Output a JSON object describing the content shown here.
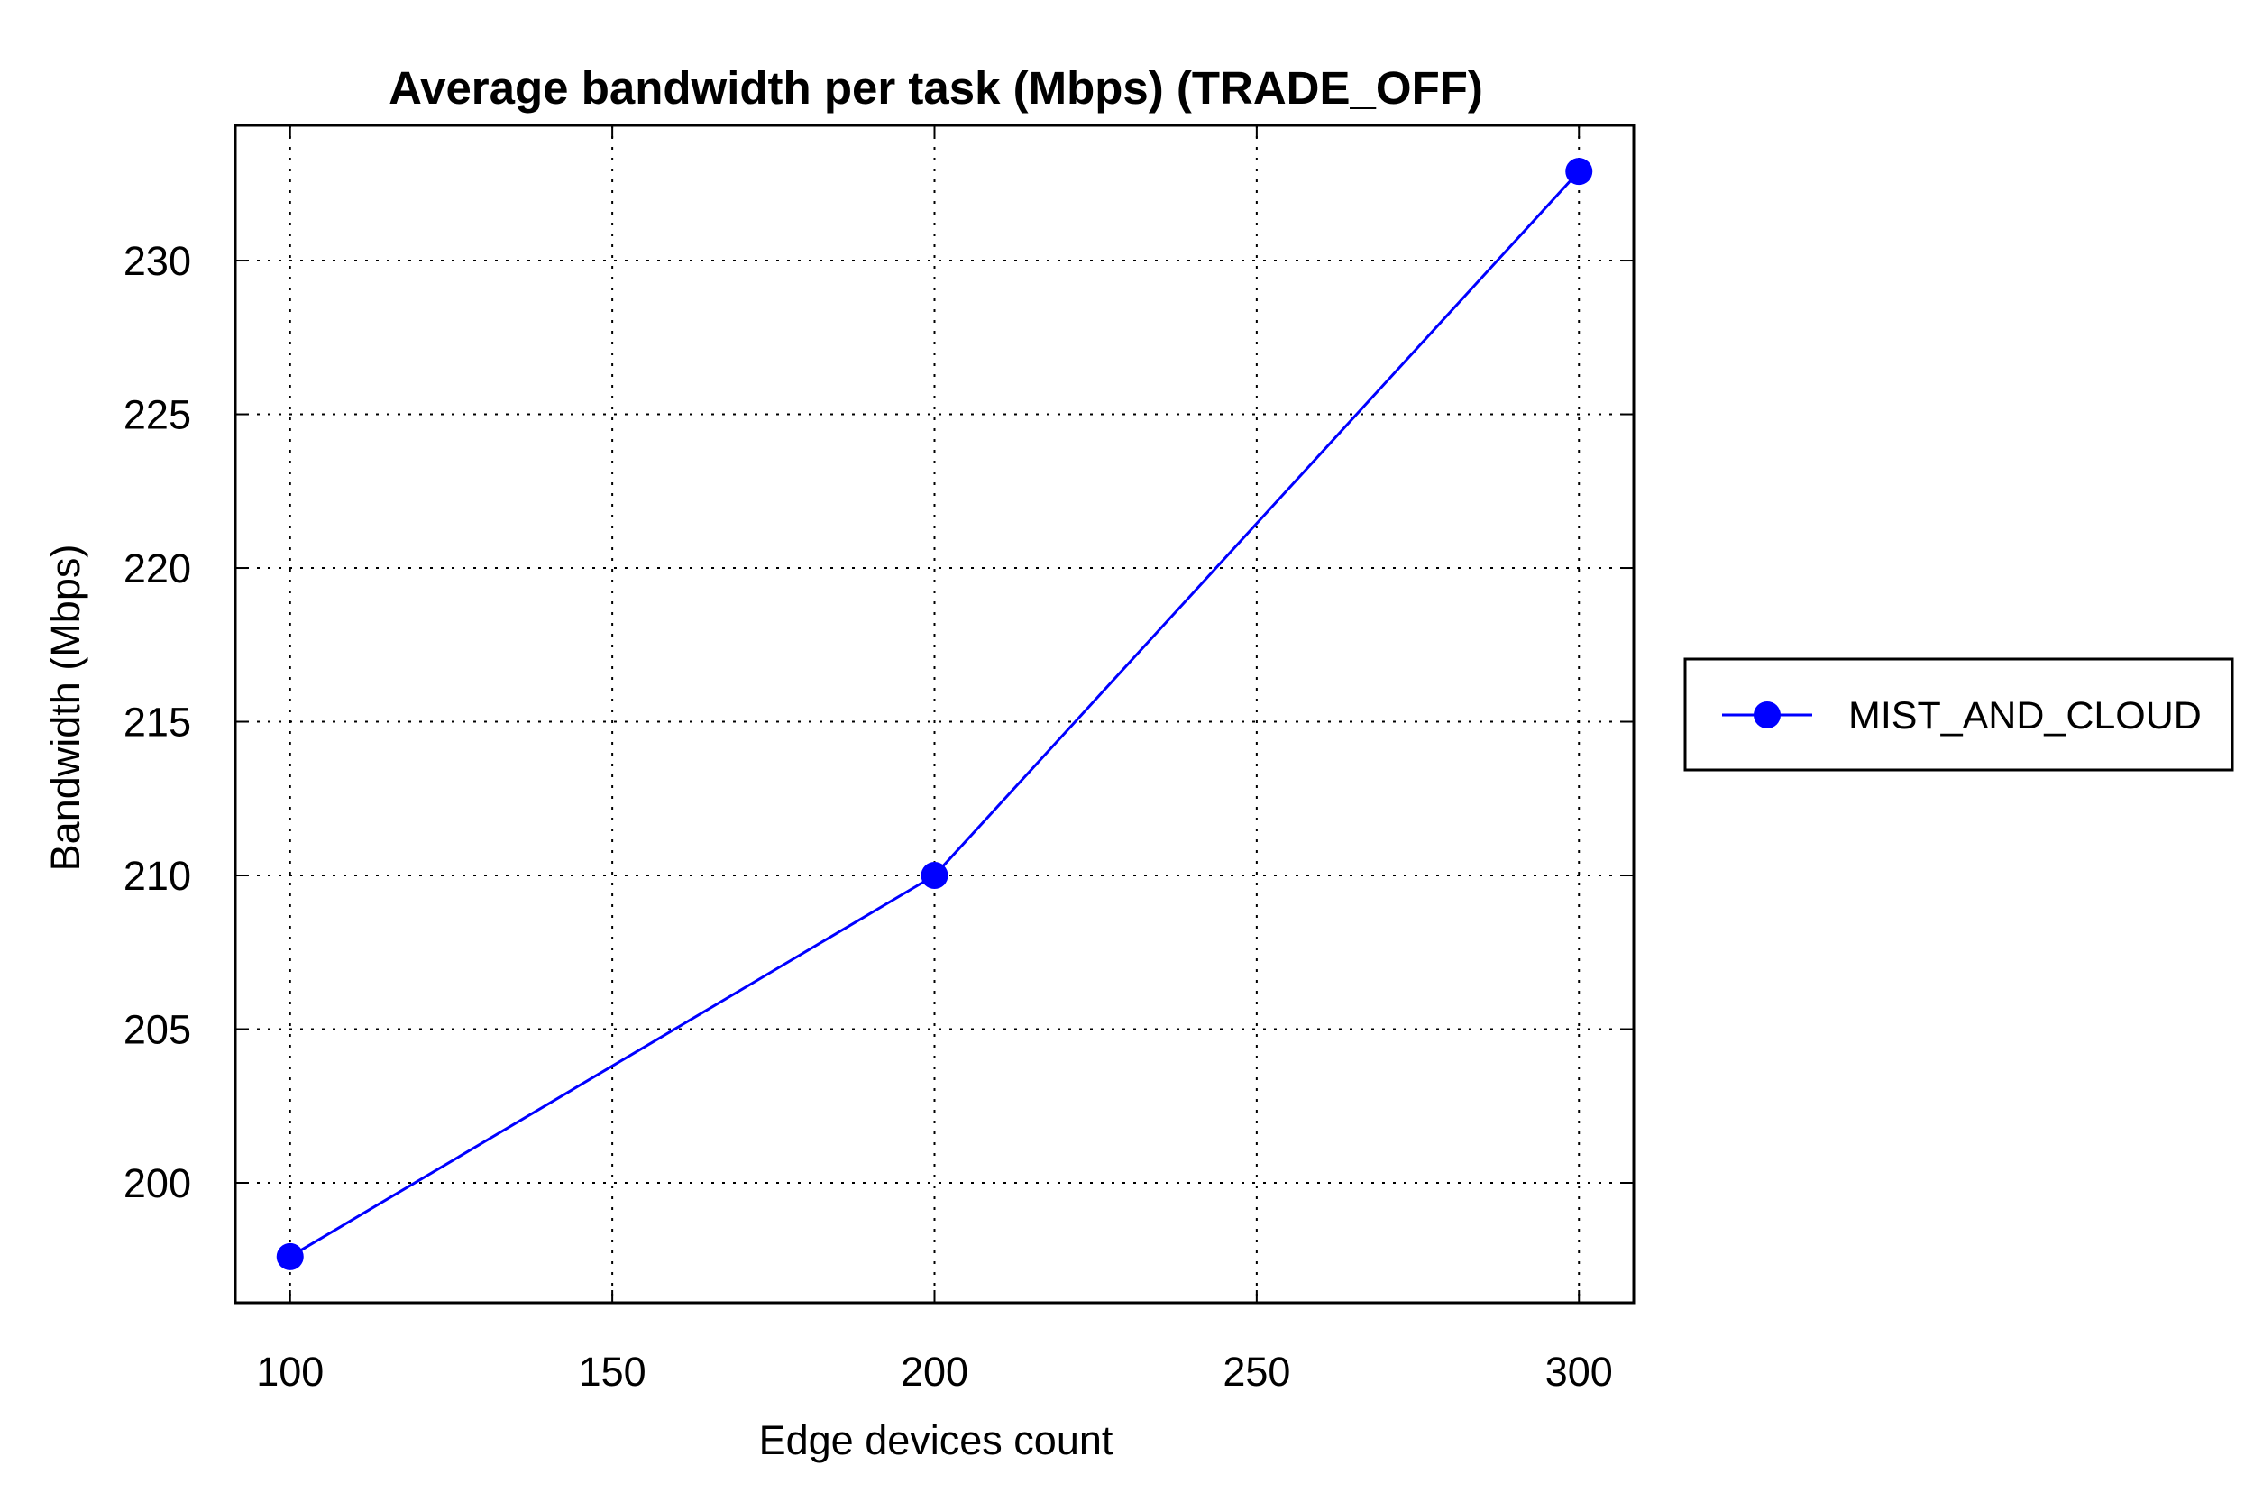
{
  "chart_data": {
    "type": "line",
    "title": "Average bandwidth per task (Mbps) (TRADE_OFF)",
    "xlabel": "Edge devices count",
    "ylabel": "Bandwidth (Mbps)",
    "x": [
      100,
      200,
      300
    ],
    "xticks": [
      "100",
      "150",
      "200",
      "250",
      "300"
    ],
    "xtick_values": [
      100,
      150,
      200,
      250,
      300
    ],
    "yticks": [
      "200",
      "205",
      "210",
      "215",
      "220",
      "225",
      "230"
    ],
    "ytick_values": [
      200,
      205,
      210,
      215,
      220,
      225,
      230
    ],
    "xlim": [
      91.5,
      308.5
    ],
    "ylim": [
      196.1,
      234.4
    ],
    "grid": true,
    "legend_position": "right",
    "series": [
      {
        "name": "MIST_AND_CLOUD",
        "values": [
          197.6,
          210.0,
          232.9
        ],
        "color": "#0000ff",
        "marker": "circle"
      }
    ]
  }
}
